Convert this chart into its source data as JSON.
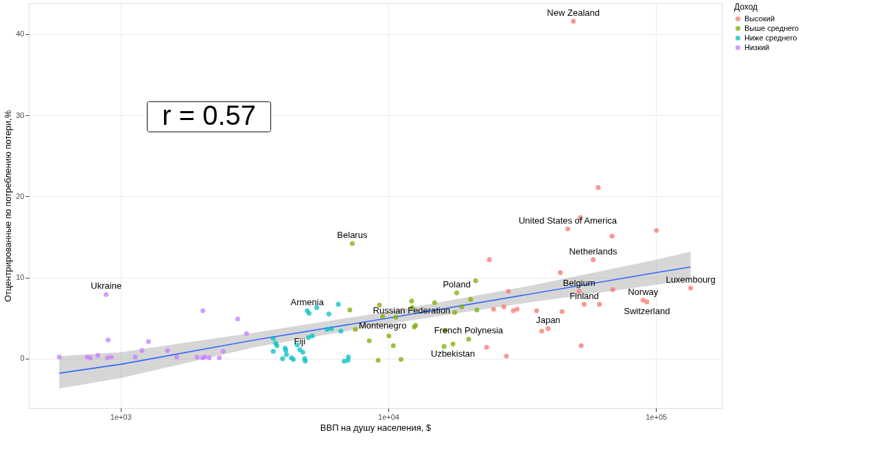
{
  "chart_data": {
    "type": "scatter",
    "xlabel": "ВВП на душу населения, $",
    "ylabel": "Отцентрированные по потреблению потери,%",
    "legend_title": "Доход",
    "log": "x",
    "xlim": [
      454,
      176000
    ],
    "ylim": [
      -6.1,
      43.8
    ],
    "xticks": [
      {
        "value": 1000,
        "label": "1e+03"
      },
      {
        "value": 10000,
        "label": "1e+04"
      },
      {
        "value": 100000,
        "label": "1e+05"
      }
    ],
    "yticks": [
      0,
      10,
      20,
      30,
      40
    ],
    "grid": true,
    "legend": "right",
    "marker": "circle",
    "series": [
      {
        "name": "Высокий",
        "color": "#f8766d",
        "x": [
          23820,
          28050,
          24720,
          26980,
          29290,
          30250,
          23290,
          27610,
          35800,
          37400,
          39520,
          44570,
          43870,
          46790,
          52200,
          60800,
          68500,
          100300,
          58200,
          51600,
          53900,
          61400,
          52500,
          68900,
          89400,
          92400,
          134600,
          49100
        ],
        "values": [
          12.2,
          8.3,
          6.1,
          6.4,
          5.9,
          6.1,
          1.4,
          0.3,
          5.9,
          3.4,
          3.7,
          5.8,
          10.6,
          16.0,
          17.4,
          21.1,
          15.1,
          15.8,
          12.2,
          8.3,
          6.7,
          6.7,
          1.6,
          8.5,
          7.2,
          7.0,
          8.7,
          41.6
        ]
      },
      {
        "name": "Выше среднего",
        "color": "#7cae00",
        "x": [
          7330,
          7180,
          7530,
          8490,
          9160,
          9260,
          9520,
          10050,
          10440,
          10670,
          11150,
          12220,
          12280,
          12500,
          12640,
          14890,
          16330,
          16150,
          17430,
          17710,
          18000,
          18800,
          20290,
          21190,
          21420,
          19950
        ],
        "values": [
          14.2,
          6.0,
          3.6,
          2.2,
          -0.2,
          6.6,
          5.2,
          2.8,
          1.6,
          5.1,
          -0.1,
          7.1,
          6.3,
          3.9,
          4.1,
          6.9,
          3.5,
          1.5,
          1.8,
          5.7,
          8.1,
          6.4,
          7.3,
          9.6,
          6.0,
          2.4
        ]
      },
      {
        "name": "Ниже среднего",
        "color": "#00bfc4",
        "x": [
          3715,
          3793,
          3837,
          3715,
          4027,
          4117,
          4140,
          4163,
          4345,
          4415,
          4566,
          4666,
          4794,
          4872,
          4894,
          4975,
          5057,
          5404,
          5995,
          6505,
          5030,
          5200,
          5900,
          6125,
          6650,
          6840,
          7065,
          7090
        ],
        "values": [
          2.5,
          1.9,
          1.6,
          0.9,
          0.0,
          1.3,
          1.0,
          0.5,
          0.1,
          -0.1,
          1.7,
          1.1,
          0.8,
          0.0,
          -0.3,
          5.9,
          5.6,
          6.3,
          5.5,
          6.7,
          2.6,
          2.8,
          3.6,
          3.7,
          3.4,
          -0.3,
          -0.2,
          0.2
        ]
      },
      {
        "name": "Низкий",
        "color": "#c77cff",
        "x": [
          590,
          750,
          771,
          822,
          883,
          898,
          893,
          923,
          1133,
          1202,
          1270,
          1496,
          1622,
          1931,
          2028,
          2028,
          2060,
          2142,
          2337,
          2415,
          2737,
          2954
        ],
        "values": [
          0.2,
          0.2,
          0.1,
          0.4,
          7.9,
          2.3,
          0.1,
          0.2,
          0.2,
          1.0,
          2.1,
          1.0,
          0.2,
          0.2,
          5.9,
          0.1,
          0.2,
          0.1,
          0.1,
          0.9,
          4.9,
          3.1
        ]
      },
      {
        "type": "line",
        "marker": "none",
        "color": "#3366ff",
        "x": [
          590,
          1000,
          3162,
          10000,
          31623,
          100000,
          134600
        ],
        "values": [
          -1.8,
          -0.7,
          2.3,
          5.0,
          7.8,
          10.6,
          11.3
        ],
        "lower": [
          -3.7,
          -2.4,
          1.4,
          4.3,
          6.8,
          9.1,
          9.7
        ],
        "upper": [
          0.3,
          0.8,
          3.2,
          5.8,
          8.8,
          12.2,
          13.2
        ]
      }
    ],
    "annotations": [
      "r = 0.57",
      {
        "text": "New Zealand",
        "x": 49100,
        "y": 41.6
      },
      {
        "text": "United States of America",
        "x": 46790,
        "y": 16.0
      },
      {
        "text": "Belarus",
        "x": 7330,
        "y": 14.2
      },
      {
        "text": "Netherlands",
        "x": 58200,
        "y": 12.2
      },
      {
        "text": "Ukraine",
        "x": 883,
        "y": 7.9
      },
      {
        "text": "Luxembourg",
        "x": 134600,
        "y": 8.7
      },
      {
        "text": "Belgium",
        "x": 51600,
        "y": 8.3
      },
      {
        "text": "Poland",
        "x": 18000,
        "y": 8.1
      },
      {
        "text": "Russian Federation",
        "x": 12220,
        "y": 7.1
      },
      {
        "text": "Norway",
        "x": 89400,
        "y": 7.2
      },
      {
        "text": "Switzerland",
        "x": 92400,
        "y": 7.0
      },
      {
        "text": "Finland",
        "x": 53900,
        "y": 6.7
      },
      {
        "text": "Armenia",
        "x": 4975,
        "y": 5.9
      },
      {
        "text": "Montenegro",
        "x": 9520,
        "y": 5.2
      },
      {
        "text": "Japan",
        "x": 39520,
        "y": 3.7
      },
      {
        "text": "French Polynesia",
        "x": 19950,
        "y": 2.4
      },
      {
        "text": "Uzbekistan",
        "x": 17430,
        "y": 1.8
      },
      {
        "text": "Fiji",
        "x": 4666,
        "y": 1.1
      }
    ]
  }
}
